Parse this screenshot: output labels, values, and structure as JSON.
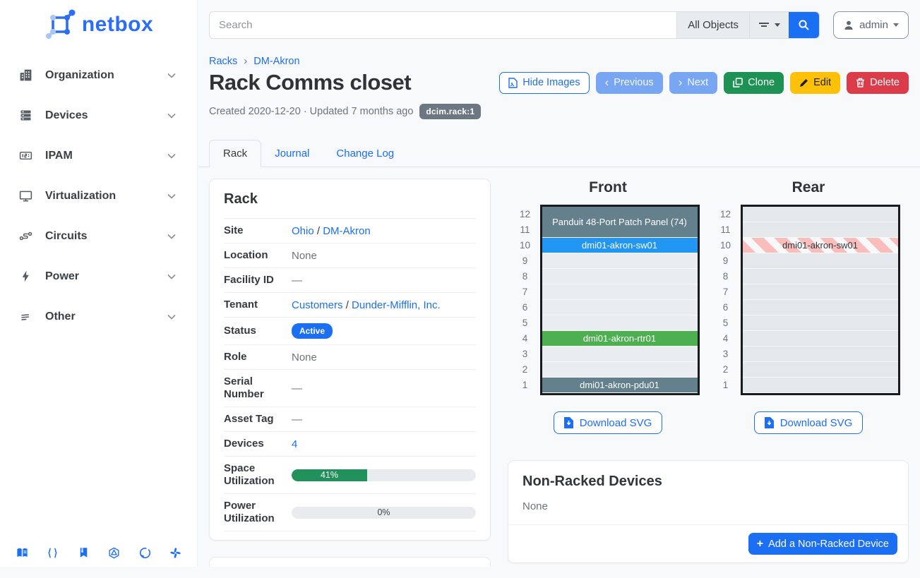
{
  "sidebar": {
    "logo": "netbox",
    "items": [
      {
        "label": "Organization",
        "icon": "building-icon"
      },
      {
        "label": "Devices",
        "icon": "server-rack-icon"
      },
      {
        "label": "IPAM",
        "icon": "counter-icon"
      },
      {
        "label": "Virtualization",
        "icon": "monitor-icon"
      },
      {
        "label": "Circuits",
        "icon": "circuit-connection-icon"
      },
      {
        "label": "Power",
        "icon": "lightning-icon"
      },
      {
        "label": "Other",
        "icon": "lines-icon"
      }
    ],
    "footer_icons": [
      "docs-book-icon",
      "rest-api-braces-icon",
      "api-docs-book-icon",
      "graphql-icon",
      "github-icon",
      "slack-icon"
    ]
  },
  "topbar": {
    "search_placeholder": "Search",
    "object_type": "All Objects",
    "user": "admin"
  },
  "breadcrumb": {
    "racks": "Racks",
    "site": "DM-Akron"
  },
  "page": {
    "title": "Rack Comms closet",
    "meta": "Created 2020-12-20 · Updated 7 months ago",
    "object_id": "dcim.rack:1",
    "actions": {
      "hide_images": "Hide Images",
      "previous": "Previous",
      "next": "Next",
      "clone": "Clone",
      "edit": "Edit",
      "delete": "Delete"
    }
  },
  "tabs": {
    "rack": "Rack",
    "journal": "Journal",
    "changelog": "Change Log"
  },
  "rack_panel": {
    "title": "Rack",
    "site_label": "Site",
    "site_parent": "Ohio",
    "site_name": "DM-Akron",
    "sep": "/",
    "location_label": "Location",
    "location_value": "None",
    "facility_label": "Facility ID",
    "facility_value": "—",
    "tenant_label": "Tenant",
    "tenant_group": "Customers",
    "tenant_name": "Dunder-Mifflin, Inc.",
    "status_label": "Status",
    "status_value": "Active",
    "role_label": "Role",
    "role_value": "None",
    "serial_label": "Serial Number",
    "serial_value": "—",
    "asset_label": "Asset Tag",
    "asset_value": "—",
    "devices_label": "Devices",
    "devices_value": "4",
    "space_label": "Space Utilization",
    "space_percent": 41,
    "space_percent_label": "41%",
    "power_label": "Power Utilization",
    "power_percent": 0,
    "power_percent_label": "0%"
  },
  "elevations": {
    "unit_count": 12,
    "front": {
      "title": "Front",
      "download_label": "Download SVG",
      "devices": [
        {
          "name": "Panduit 48-Port Patch Panel (74)",
          "unit": 12,
          "u_height": 2,
          "bg": "#64808d",
          "fg": "#ffffff"
        },
        {
          "name": "dmi01-akron-sw01",
          "unit": 10,
          "u_height": 1,
          "bg": "#2196f3",
          "fg": "#ffffff"
        },
        {
          "name": "dmi01-akron-rtr01",
          "unit": 4,
          "u_height": 1,
          "bg": "#4caf50",
          "fg": "#ffffff"
        },
        {
          "name": "dmi01-akron-pdu01",
          "unit": 1,
          "u_height": 1,
          "bg": "#64808d",
          "fg": "#ffffff"
        }
      ]
    },
    "rear": {
      "title": "Rear",
      "download_label": "Download SVG",
      "devices": [
        {
          "name": "dmi01-akron-sw01",
          "unit": 10,
          "u_height": 1,
          "striped": true,
          "fg": "#343a40"
        }
      ]
    }
  },
  "non_racked": {
    "title": "Non-Racked Devices",
    "empty_value": "None",
    "add_label": "Add a Non-Racked Device"
  },
  "colors": {
    "accent_blue": "#1b6ff2",
    "soft_blue": "#79a6f3",
    "clone_green": "#1e9254",
    "edit_yellow": "#ffc107",
    "delete_red": "#dc3c4a",
    "badge_gray": "#6c7781",
    "progress_green": "#20915a",
    "device_slate": "#64808d",
    "device_blue": "#2196f3",
    "device_green": "#4caf50",
    "stripe_pink": "#f9bebc"
  }
}
